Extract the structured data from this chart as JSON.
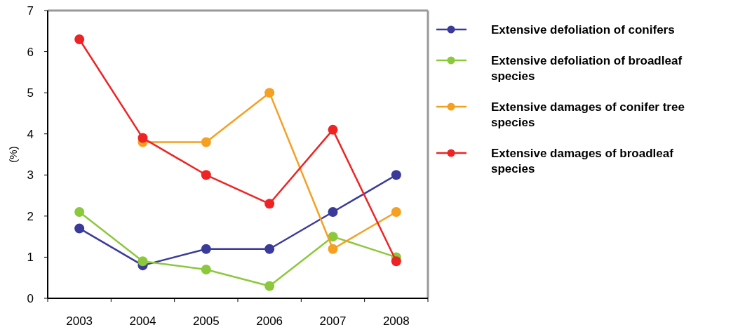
{
  "chart_data": {
    "type": "line",
    "ylabel": "(%)",
    "categories": [
      "2003",
      "2004",
      "2005",
      "2006",
      "2007",
      "2008"
    ],
    "ylim": [
      0,
      7
    ],
    "yticks": [
      0,
      1,
      2,
      3,
      4,
      5,
      6,
      7
    ],
    "marker": "circle",
    "legend": "right",
    "grid": false,
    "series": [
      {
        "name": "Extensive defoliation of conifers",
        "color": "#3a3a9a",
        "values": [
          1.7,
          0.8,
          1.2,
          1.2,
          2.1,
          3.0
        ]
      },
      {
        "name": "Extensive defoliation of broadleaf species",
        "color": "#8cc83c",
        "values": [
          2.1,
          0.9,
          0.7,
          0.3,
          1.5,
          1.0
        ]
      },
      {
        "name": "Extensive damages of conifer tree species",
        "color": "#f5a020",
        "values": [
          null,
          3.8,
          3.8,
          5.0,
          1.2,
          2.1
        ]
      },
      {
        "name": "Extensive damages of broadleaf species",
        "color": "#ee2424",
        "values": [
          6.3,
          3.9,
          3.0,
          2.3,
          4.1,
          0.9
        ]
      }
    ]
  }
}
